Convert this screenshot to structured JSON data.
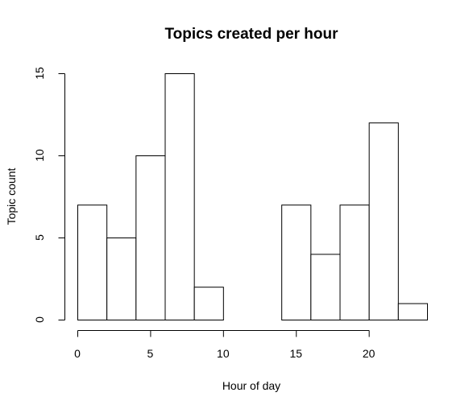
{
  "chart_data": {
    "type": "bar",
    "title": "Topics created per hour",
    "xlabel": "Hour of day",
    "ylabel": "Topic count",
    "bin_edges": [
      0,
      2,
      4,
      6,
      8,
      10,
      12,
      14,
      16,
      18,
      20,
      22,
      24
    ],
    "values": [
      7,
      5,
      10,
      15,
      2,
      0,
      0,
      7,
      4,
      7,
      12,
      1
    ],
    "xlim": [
      0,
      24
    ],
    "ylim": [
      0,
      15
    ],
    "x_ticks": [
      0,
      5,
      10,
      15,
      20
    ],
    "y_ticks": [
      0,
      5,
      10,
      15
    ],
    "grid": false,
    "colors": {
      "bar_fill": "#ffffff",
      "bar_stroke": "#000000",
      "background": "#ffffff"
    }
  }
}
